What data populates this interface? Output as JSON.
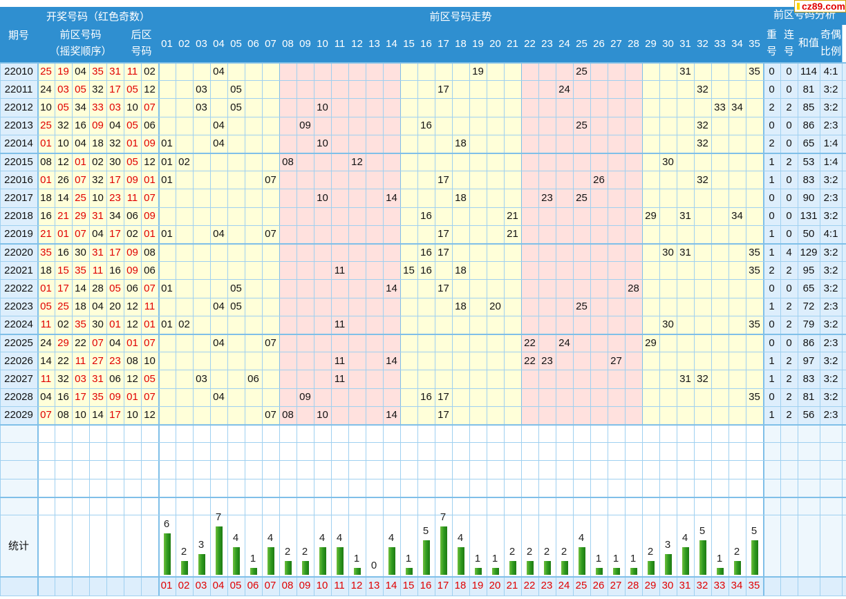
{
  "logo": {
    "text": "cz89.com"
  },
  "header": {
    "period": "期号",
    "open_title": "开奖号码（红色奇数）",
    "front_title_1": "前区号码",
    "front_title_2": "（摇奖顺序）",
    "back_title_1": "后区",
    "back_title_2": "号码",
    "trend_title": "前区号码走势",
    "analysis_title": "前区号码分析",
    "repeat_1": "重",
    "repeat_2": "号",
    "consec_1": "连",
    "consec_2": "号",
    "sum": "和值",
    "ratio_1": "奇偶",
    "ratio_2": "比例",
    "stats_label": "统计"
  },
  "columns": [
    "01",
    "02",
    "03",
    "04",
    "05",
    "06",
    "07",
    "08",
    "09",
    "10",
    "11",
    "12",
    "13",
    "14",
    "15",
    "16",
    "17",
    "18",
    "19",
    "20",
    "21",
    "22",
    "23",
    "24",
    "25",
    "26",
    "27",
    "28",
    "29",
    "30",
    "31",
    "32",
    "33",
    "34",
    "35"
  ],
  "rows": [
    {
      "period": "22010",
      "front": [
        "25",
        "19",
        "04",
        "35",
        "31"
      ],
      "back": [
        "11",
        "02"
      ],
      "repeat": "0",
      "consec": "0",
      "sum": "114",
      "ratio": "4:1"
    },
    {
      "period": "22011",
      "front": [
        "24",
        "03",
        "05",
        "32",
        "17"
      ],
      "back": [
        "05",
        "12"
      ],
      "repeat": "0",
      "consec": "0",
      "sum": "81",
      "ratio": "3:2"
    },
    {
      "period": "22012",
      "front": [
        "10",
        "05",
        "34",
        "33",
        "03"
      ],
      "back": [
        "10",
        "07"
      ],
      "repeat": "2",
      "consec": "2",
      "sum": "85",
      "ratio": "3:2"
    },
    {
      "period": "22013",
      "front": [
        "25",
        "32",
        "16",
        "09",
        "04"
      ],
      "back": [
        "05",
        "06"
      ],
      "repeat": "0",
      "consec": "0",
      "sum": "86",
      "ratio": "2:3"
    },
    {
      "period": "22014",
      "front": [
        "01",
        "10",
        "04",
        "18",
        "32"
      ],
      "back": [
        "01",
        "09"
      ],
      "repeat": "2",
      "consec": "0",
      "sum": "65",
      "ratio": "1:4"
    },
    {
      "period": "22015",
      "front": [
        "08",
        "12",
        "01",
        "02",
        "30"
      ],
      "back": [
        "05",
        "12"
      ],
      "repeat": "1",
      "consec": "2",
      "sum": "53",
      "ratio": "1:4"
    },
    {
      "period": "22016",
      "front": [
        "01",
        "26",
        "07",
        "32",
        "17"
      ],
      "back": [
        "09",
        "01"
      ],
      "repeat": "1",
      "consec": "0",
      "sum": "83",
      "ratio": "3:2"
    },
    {
      "period": "22017",
      "front": [
        "18",
        "14",
        "25",
        "10",
        "23"
      ],
      "back": [
        "11",
        "07"
      ],
      "repeat": "0",
      "consec": "0",
      "sum": "90",
      "ratio": "2:3"
    },
    {
      "period": "22018",
      "front": [
        "16",
        "21",
        "29",
        "31",
        "34"
      ],
      "back": [
        "06",
        "09"
      ],
      "repeat": "0",
      "consec": "0",
      "sum": "131",
      "ratio": "3:2"
    },
    {
      "period": "22019",
      "front": [
        "21",
        "01",
        "07",
        "04",
        "17"
      ],
      "back": [
        "02",
        "01"
      ],
      "repeat": "1",
      "consec": "0",
      "sum": "50",
      "ratio": "4:1"
    },
    {
      "period": "22020",
      "front": [
        "35",
        "16",
        "30",
        "31",
        "17"
      ],
      "back": [
        "09",
        "08"
      ],
      "repeat": "1",
      "consec": "4",
      "sum": "129",
      "ratio": "3:2"
    },
    {
      "period": "22021",
      "front": [
        "18",
        "15",
        "35",
        "11",
        "16"
      ],
      "back": [
        "09",
        "06"
      ],
      "repeat": "2",
      "consec": "2",
      "sum": "95",
      "ratio": "3:2"
    },
    {
      "period": "22022",
      "front": [
        "01",
        "17",
        "14",
        "28",
        "05"
      ],
      "back": [
        "06",
        "07"
      ],
      "repeat": "0",
      "consec": "0",
      "sum": "65",
      "ratio": "3:2"
    },
    {
      "period": "22023",
      "front": [
        "05",
        "25",
        "18",
        "04",
        "20"
      ],
      "back": [
        "12",
        "11"
      ],
      "repeat": "1",
      "consec": "2",
      "sum": "72",
      "ratio": "2:3"
    },
    {
      "period": "22024",
      "front": [
        "11",
        "02",
        "35",
        "30",
        "01"
      ],
      "back": [
        "12",
        "01"
      ],
      "repeat": "0",
      "consec": "2",
      "sum": "79",
      "ratio": "3:2"
    },
    {
      "period": "22025",
      "front": [
        "24",
        "29",
        "22",
        "07",
        "04"
      ],
      "back": [
        "01",
        "07"
      ],
      "repeat": "0",
      "consec": "0",
      "sum": "86",
      "ratio": "2:3"
    },
    {
      "period": "22026",
      "front": [
        "14",
        "22",
        "11",
        "27",
        "23"
      ],
      "back": [
        "08",
        "10"
      ],
      "repeat": "1",
      "consec": "2",
      "sum": "97",
      "ratio": "3:2"
    },
    {
      "period": "22027",
      "front": [
        "11",
        "32",
        "03",
        "31",
        "06"
      ],
      "back": [
        "12",
        "05"
      ],
      "repeat": "1",
      "consec": "2",
      "sum": "83",
      "ratio": "3:2"
    },
    {
      "period": "22028",
      "front": [
        "04",
        "16",
        "17",
        "35",
        "09"
      ],
      "back": [
        "01",
        "07"
      ],
      "repeat": "0",
      "consec": "2",
      "sum": "81",
      "ratio": "3:2"
    },
    {
      "period": "22029",
      "front": [
        "07",
        "08",
        "10",
        "14",
        "17"
      ],
      "back": [
        "10",
        "12"
      ],
      "repeat": "1",
      "consec": "2",
      "sum": "56",
      "ratio": "2:3"
    }
  ],
  "chart_data": {
    "type": "bar",
    "title": "统计",
    "categories": [
      "01",
      "02",
      "03",
      "04",
      "05",
      "06",
      "07",
      "08",
      "09",
      "10",
      "11",
      "12",
      "13",
      "14",
      "15",
      "16",
      "17",
      "18",
      "19",
      "20",
      "21",
      "22",
      "23",
      "24",
      "25",
      "26",
      "27",
      "28",
      "29",
      "30",
      "31",
      "32",
      "33",
      "34",
      "35"
    ],
    "values": [
      6,
      2,
      3,
      7,
      4,
      1,
      4,
      2,
      2,
      4,
      4,
      1,
      0,
      4,
      1,
      5,
      7,
      4,
      1,
      1,
      2,
      2,
      2,
      2,
      4,
      1,
      1,
      1,
      2,
      3,
      4,
      5,
      1,
      2,
      5
    ]
  },
  "colors": {
    "header": "#2f8fd0",
    "yellow": "#ffffd9",
    "pink": "#ffe1de",
    "blue_light": "#ddeefc",
    "odd": "#e00000",
    "bar": "#2f9a1f"
  }
}
